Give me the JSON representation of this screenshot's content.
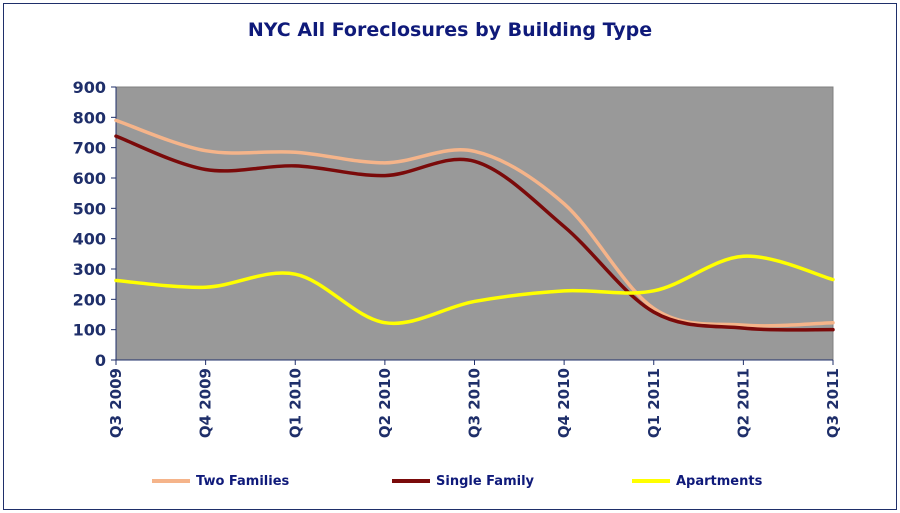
{
  "chart_data": {
    "type": "line",
    "title": "NYC All Foreclosures by Building Type",
    "xlabel": "",
    "ylabel": "",
    "ylim": [
      0,
      900
    ],
    "yticks": [
      0,
      100,
      200,
      300,
      400,
      500,
      600,
      700,
      800,
      900
    ],
    "categories": [
      "Q3 2009",
      "Q4 2009",
      "Q1 2010",
      "Q2 2010",
      "Q3 2010",
      "Q4 2010",
      "Q1 2011",
      "Q2 2011",
      "Q3 2011"
    ],
    "series": [
      {
        "name": "Two Families",
        "color": "#f5b48a",
        "values": [
          790,
          690,
          685,
          650,
          688,
          515,
          170,
          115,
          123
        ]
      },
      {
        "name": "Single Family",
        "color": "#7a0a0a",
        "values": [
          738,
          628,
          640,
          608,
          655,
          440,
          158,
          105,
          100
        ]
      },
      {
        "name": "Apartments",
        "color": "#ffff00",
        "values": [
          262,
          240,
          283,
          123,
          193,
          228,
          228,
          342,
          265
        ]
      }
    ],
    "grid": false,
    "legend_position": "bottom",
    "plot_background": "#999999"
  }
}
